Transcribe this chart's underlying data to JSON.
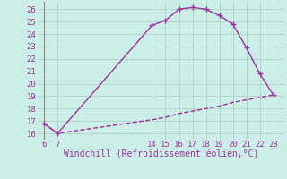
{
  "x_data_top": [
    6,
    7,
    14,
    15,
    16,
    17,
    18,
    19,
    20,
    21,
    22,
    23
  ],
  "y_data_top": [
    16.8,
    16.0,
    24.7,
    25.1,
    26.0,
    26.15,
    26.0,
    25.5,
    24.8,
    22.9,
    20.8,
    19.1
  ],
  "x_data_bottom": [
    6,
    7,
    14,
    15,
    16,
    17,
    18,
    19,
    20,
    21,
    22,
    23
  ],
  "y_data_bottom": [
    16.8,
    16.0,
    17.1,
    17.3,
    17.6,
    17.8,
    18.0,
    18.2,
    18.5,
    18.7,
    18.9,
    19.1
  ],
  "x_ticks": [
    6,
    7,
    14,
    15,
    16,
    17,
    18,
    19,
    20,
    21,
    22,
    23
  ],
  "y_ticks": [
    16,
    17,
    18,
    19,
    20,
    21,
    22,
    23,
    24,
    25,
    26
  ],
  "xlim": [
    5.5,
    23.8
  ],
  "ylim": [
    15.5,
    26.6
  ],
  "xlabel": "Windchill (Refroidissement éolien,°C)",
  "line_color": "#993399",
  "marker_color": "#993399",
  "bg_color": "#cceee8",
  "grid_color": "#aaccbb",
  "tick_color": "#993399",
  "label_color": "#993399",
  "marker_size": 2.5,
  "line_width": 1.0,
  "xlabel_fontsize": 7,
  "tick_fontsize": 6.5
}
